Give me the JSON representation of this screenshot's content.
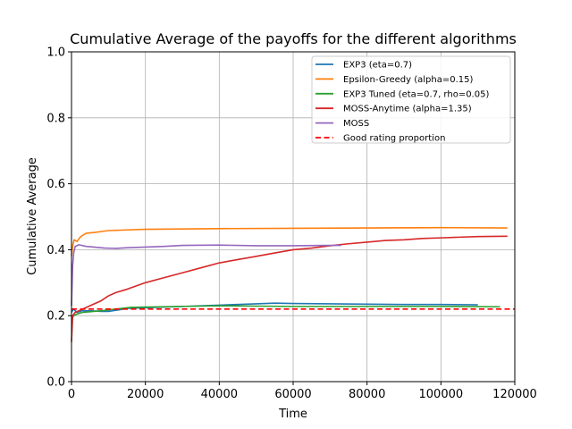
{
  "chart_data": {
    "type": "line",
    "title": "Cumulative Average of the payoffs for the different algorithms",
    "xlabel": "Time",
    "ylabel": "Cumulative Average",
    "xlim": [
      0,
      120000
    ],
    "ylim": [
      0.0,
      1.0
    ],
    "xticks": [
      0,
      20000,
      40000,
      60000,
      80000,
      100000,
      120000
    ],
    "yticks": [
      0.0,
      0.2,
      0.4,
      0.6,
      0.8,
      1.0
    ],
    "xtick_labels": [
      "0",
      "20000",
      "40000",
      "60000",
      "80000",
      "100000",
      "120000"
    ],
    "ytick_labels": [
      "0.0",
      "0.2",
      "0.4",
      "0.6",
      "0.8",
      "1.0"
    ],
    "grid": true,
    "legend_position": "top-right",
    "series": [
      {
        "name": "EXP3 (eta=0.7)",
        "color": "#1f77b4",
        "style": "solid",
        "points": [
          [
            0,
            0.21
          ],
          [
            500,
            0.22
          ],
          [
            1500,
            0.21
          ],
          [
            3000,
            0.215
          ],
          [
            5000,
            0.215
          ],
          [
            8000,
            0.213
          ],
          [
            10000,
            0.213
          ],
          [
            13000,
            0.218
          ],
          [
            15000,
            0.222
          ],
          [
            20000,
            0.224
          ],
          [
            25000,
            0.226
          ],
          [
            30000,
            0.228
          ],
          [
            40000,
            0.232
          ],
          [
            50000,
            0.236
          ],
          [
            55000,
            0.238
          ],
          [
            60000,
            0.237
          ],
          [
            70000,
            0.236
          ],
          [
            80000,
            0.235
          ],
          [
            90000,
            0.234
          ],
          [
            100000,
            0.234
          ],
          [
            110000,
            0.233
          ]
        ]
      },
      {
        "name": "Epsilon-Greedy (alpha=0.15)",
        "color": "#ff7f0e",
        "style": "solid",
        "points": [
          [
            0,
            0.38
          ],
          [
            300,
            0.41
          ],
          [
            700,
            0.43
          ],
          [
            1500,
            0.425
          ],
          [
            2500,
            0.44
          ],
          [
            4000,
            0.45
          ],
          [
            6000,
            0.452
          ],
          [
            8000,
            0.455
          ],
          [
            10000,
            0.458
          ],
          [
            15000,
            0.46
          ],
          [
            20000,
            0.462
          ],
          [
            30000,
            0.463
          ],
          [
            40000,
            0.464
          ],
          [
            60000,
            0.465
          ],
          [
            80000,
            0.466
          ],
          [
            100000,
            0.467
          ],
          [
            118000,
            0.466
          ]
        ]
      },
      {
        "name": "EXP3 Tuned (eta=0.7, rho=0.05)",
        "color": "#2ca02c",
        "style": "solid",
        "points": [
          [
            0,
            0.19
          ],
          [
            600,
            0.2
          ],
          [
            1500,
            0.205
          ],
          [
            3000,
            0.21
          ],
          [
            5000,
            0.212
          ],
          [
            8000,
            0.215
          ],
          [
            12000,
            0.22
          ],
          [
            16000,
            0.225
          ],
          [
            20000,
            0.226
          ],
          [
            30000,
            0.228
          ],
          [
            40000,
            0.23
          ],
          [
            50000,
            0.229
          ],
          [
            60000,
            0.228
          ],
          [
            80000,
            0.228
          ],
          [
            100000,
            0.228
          ],
          [
            116000,
            0.227
          ]
        ]
      },
      {
        "name": "MOSS-Anytime (alpha=1.35)",
        "color": "#d62728",
        "style": "solid",
        "points": [
          [
            0,
            0.12
          ],
          [
            300,
            0.2
          ],
          [
            1000,
            0.21
          ],
          [
            2000,
            0.215
          ],
          [
            4000,
            0.225
          ],
          [
            6000,
            0.235
          ],
          [
            8000,
            0.245
          ],
          [
            10000,
            0.26
          ],
          [
            12000,
            0.27
          ],
          [
            15000,
            0.28
          ],
          [
            20000,
            0.3
          ],
          [
            25000,
            0.315
          ],
          [
            30000,
            0.33
          ],
          [
            35000,
            0.345
          ],
          [
            40000,
            0.36
          ],
          [
            45000,
            0.37
          ],
          [
            50000,
            0.38
          ],
          [
            55000,
            0.39
          ],
          [
            60000,
            0.4
          ],
          [
            65000,
            0.405
          ],
          [
            70000,
            0.412
          ],
          [
            75000,
            0.418
          ],
          [
            80000,
            0.423
          ],
          [
            85000,
            0.428
          ],
          [
            90000,
            0.43
          ],
          [
            95000,
            0.434
          ],
          [
            100000,
            0.436
          ],
          [
            105000,
            0.438
          ],
          [
            110000,
            0.44
          ],
          [
            118000,
            0.441
          ]
        ]
      },
      {
        "name": "MOSS",
        "color": "#9467bd",
        "style": "solid",
        "points": [
          [
            0,
            0.23
          ],
          [
            300,
            0.35
          ],
          [
            600,
            0.39
          ],
          [
            1000,
            0.41
          ],
          [
            2000,
            0.415
          ],
          [
            4000,
            0.41
          ],
          [
            6000,
            0.408
          ],
          [
            9000,
            0.405
          ],
          [
            12000,
            0.404
          ],
          [
            15000,
            0.406
          ],
          [
            20000,
            0.408
          ],
          [
            25000,
            0.41
          ],
          [
            30000,
            0.413
          ],
          [
            40000,
            0.414
          ],
          [
            50000,
            0.412
          ],
          [
            60000,
            0.412
          ],
          [
            70000,
            0.413
          ],
          [
            73000,
            0.413
          ]
        ]
      },
      {
        "name": "Good rating proportion",
        "color": "#ff0000",
        "style": "dashed",
        "points": [
          [
            0,
            0.22
          ],
          [
            120000,
            0.22
          ]
        ]
      }
    ]
  }
}
